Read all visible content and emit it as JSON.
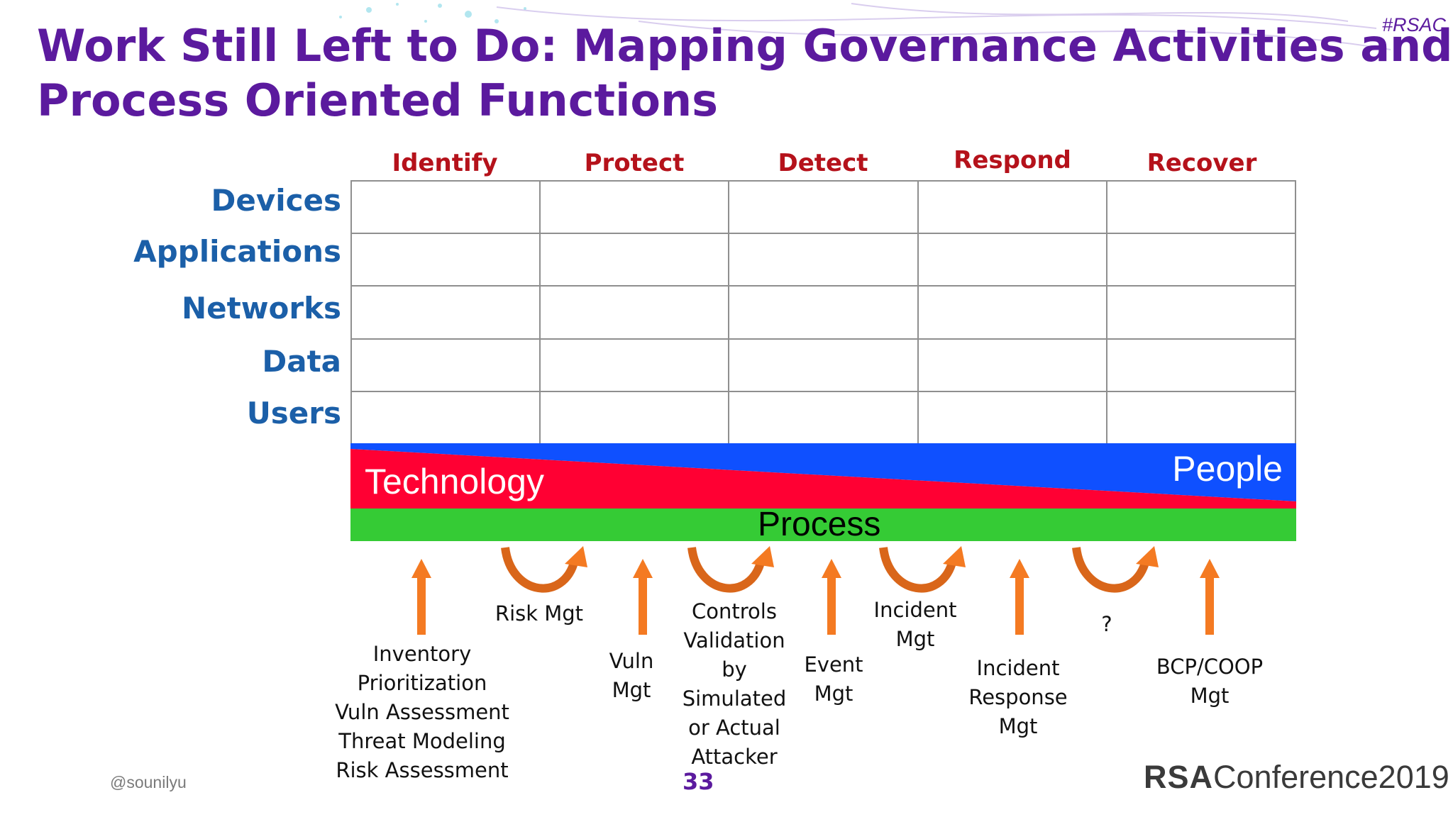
{
  "slide": {
    "title_lines": [
      "Work Still Left to Do: Mapping Governance Activities and",
      "Process Oriented Functions"
    ],
    "hashtag": "#RSAC",
    "handle": "@sounilyu",
    "page_number": "33",
    "logo_bold": "RSA",
    "logo_text": "Conference2019"
  },
  "matrix": {
    "columns": [
      "Identify",
      "Protect",
      "Detect",
      "Respond",
      "Recover"
    ],
    "rows": [
      "Devices",
      "Applications",
      "Networks",
      "Data",
      "Users"
    ]
  },
  "bands": {
    "technology": "Technology",
    "people": "People",
    "process": "Process",
    "technology_color": "#ff0033",
    "people_color": "#0f50ff",
    "process_color": "#35cb35"
  },
  "activities": {
    "inventory": [
      "Inventory",
      "Prioritization",
      "Vuln Assessment",
      "Threat Modeling",
      "Risk Assessment"
    ],
    "risk": [
      "Risk Mgt"
    ],
    "vuln": [
      "Vuln",
      "Mgt"
    ],
    "controls": [
      "Controls",
      "Validation",
      "by",
      "Simulated",
      "or Actual",
      "Attacker"
    ],
    "event": [
      "Event",
      "Mgt"
    ],
    "incident": [
      "Incident",
      "Mgt"
    ],
    "incident_response": [
      "Incident",
      "Response",
      "Mgt"
    ],
    "unknown": [
      "?"
    ],
    "bcp": [
      "BCP/COOP",
      "Mgt"
    ],
    "arrow_color": "#f47a22",
    "curve_color": "#d9661a"
  }
}
